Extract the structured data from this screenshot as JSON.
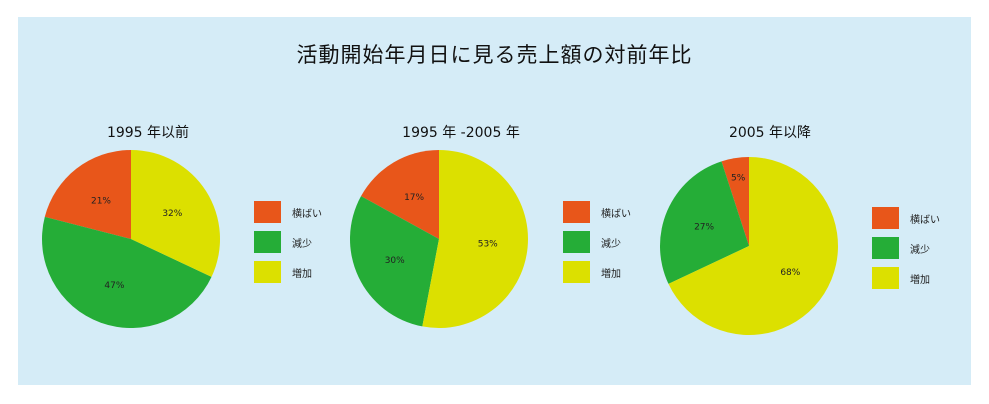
{
  "title": "活動開始年月日に見る売上額の対前年比",
  "colors": {
    "横ばい": "#e8561a",
    "減少": "#25ad37",
    "増加": "#dce000"
  },
  "legend": [
    "横ばい",
    "減少",
    "増加"
  ],
  "chart_data": [
    {
      "type": "pie",
      "title": "1995 年以前",
      "labels": [
        "横ばい",
        "減少",
        "増加"
      ],
      "values": [
        21,
        47,
        32
      ],
      "value_labels": [
        "21%",
        "47%",
        "32%"
      ]
    },
    {
      "type": "pie",
      "title": "1995 年 -2005 年",
      "labels": [
        "横ばい",
        "減少",
        "増加"
      ],
      "values": [
        17,
        30,
        53
      ],
      "value_labels": [
        "17%",
        "30%",
        "53%"
      ]
    },
    {
      "type": "pie",
      "title": "2005 年以降",
      "labels": [
        "横ばい",
        "減少",
        "増加"
      ],
      "values": [
        5,
        27,
        68
      ],
      "value_labels": [
        "5%",
        "27%",
        "68%"
      ]
    }
  ]
}
